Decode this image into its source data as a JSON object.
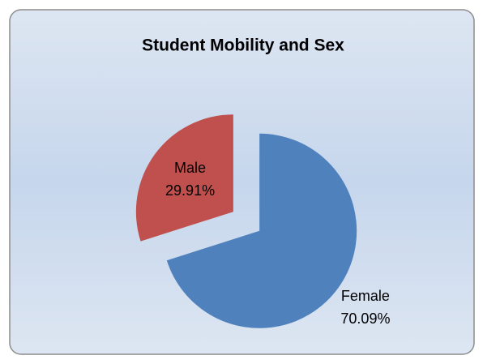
{
  "chart_data": {
    "type": "pie",
    "title": "Student Mobility and Sex",
    "categories": [
      "Female",
      "Male"
    ],
    "values": [
      70.09,
      29.91
    ],
    "value_labels": [
      "70.09%",
      "29.91%"
    ],
    "colors": [
      "#4f81bd",
      "#c0504d"
    ]
  }
}
